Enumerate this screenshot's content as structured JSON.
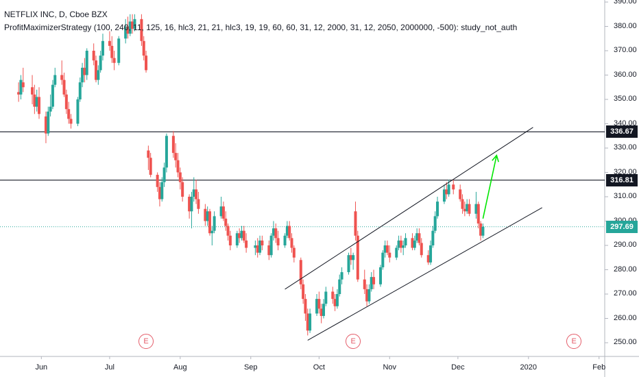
{
  "header": {
    "symbol_line": "NETFLIX INC, D, Cboe BZX",
    "study_line": "ProfitMaximizerStrategy (100, 240, 11, 125, 16, hlc3, 21, 21, hlc3, 19, 19, 60, 60, 31, 12, 2000, 31, 12, 2050, 2000000, -500): study_not_auth"
  },
  "earnings_badges": [
    {
      "label": "E",
      "date": "2019-07-17"
    },
    {
      "label": "E",
      "date": "2019-10-16"
    },
    {
      "label": "E",
      "date": "2020-01-21"
    }
  ],
  "colors": {
    "up": "#26a69a",
    "down": "#ef5350",
    "level_line": "#131722",
    "last_price": "#26a69a",
    "arrow": "#00e600",
    "badge": "#e45c69"
  },
  "chart_data": {
    "type": "candlestick",
    "title": "NETFLIX INC, D, Cboe BZX",
    "xlabel": "",
    "ylabel": "",
    "ylim": [
      246,
      392
    ],
    "x_tick_labels": [
      "Jun",
      "Jul",
      "Aug",
      "Sep",
      "Oct",
      "Nov",
      "Dec",
      "2020",
      "Feb"
    ],
    "y_tick_labels": [
      "250.00",
      "260.00",
      "270.00",
      "280.00",
      "290.00",
      "300.00",
      "310.00",
      "320.00",
      "330.00",
      "340.00",
      "350.00",
      "360.00",
      "370.00",
      "380.00",
      "390.00"
    ],
    "grid": false,
    "price_levels": [
      {
        "label": "336.67",
        "value": 336.67
      },
      {
        "label": "316.81",
        "value": 316.81
      }
    ],
    "last_price": {
      "label": "297.69",
      "value": 297.69
    },
    "trend_channel": {
      "upper": {
        "from": [
          "2019-09-16",
          272
        ],
        "to": [
          "2020-01-03",
          338.5
        ]
      },
      "lower": {
        "from": [
          "2019-09-26",
          251
        ],
        "to": [
          "2020-01-07",
          305.5
        ]
      }
    },
    "projection_arrow": {
      "from": [
        "2019-12-12",
        301
      ],
      "to": [
        "2019-12-18",
        327
      ]
    },
    "candles": [
      {
        "d": "2019-05-22",
        "o": 353.0,
        "h": 357.0,
        "l": 349.0,
        "c": 352.0
      },
      {
        "d": "2019-05-23",
        "o": 352.0,
        "h": 360.0,
        "l": 350.0,
        "c": 358.0
      },
      {
        "d": "2019-05-24",
        "o": 357.0,
        "h": 363.0,
        "l": 353.0,
        "c": 355.0
      },
      {
        "d": "2019-05-28",
        "o": 355.0,
        "h": 360.0,
        "l": 348.0,
        "c": 352.0
      },
      {
        "d": "2019-05-29",
        "o": 352.0,
        "h": 356.0,
        "l": 344.0,
        "c": 347.0
      },
      {
        "d": "2019-05-30",
        "o": 347.0,
        "h": 354.0,
        "l": 345.0,
        "c": 351.0
      },
      {
        "d": "2019-05-31",
        "o": 351.0,
        "h": 355.0,
        "l": 342.0,
        "c": 344.0
      },
      {
        "d": "2019-06-03",
        "o": 343.0,
        "h": 345.0,
        "l": 332.0,
        "c": 336.0
      },
      {
        "d": "2019-06-04",
        "o": 336.0,
        "h": 347.0,
        "l": 335.0,
        "c": 345.0
      },
      {
        "d": "2019-06-05",
        "o": 345.0,
        "h": 352.0,
        "l": 343.0,
        "c": 347.0
      },
      {
        "d": "2019-06-06",
        "o": 347.0,
        "h": 358.0,
        "l": 346.0,
        "c": 356.0
      },
      {
        "d": "2019-06-07",
        "o": 356.0,
        "h": 363.0,
        "l": 355.0,
        "c": 360.0
      },
      {
        "d": "2019-06-10",
        "o": 360.0,
        "h": 366.0,
        "l": 356.0,
        "c": 358.0
      },
      {
        "d": "2019-06-11",
        "o": 358.0,
        "h": 361.0,
        "l": 351.0,
        "c": 352.0
      },
      {
        "d": "2019-06-12",
        "o": 352.0,
        "h": 354.0,
        "l": 344.0,
        "c": 346.0
      },
      {
        "d": "2019-06-13",
        "o": 346.0,
        "h": 349.0,
        "l": 340.0,
        "c": 342.0
      },
      {
        "d": "2019-06-14",
        "o": 342.0,
        "h": 344.0,
        "l": 338.0,
        "c": 340.0
      },
      {
        "d": "2019-06-17",
        "o": 340.0,
        "h": 351.0,
        "l": 339.0,
        "c": 350.0
      },
      {
        "d": "2019-06-18",
        "o": 350.0,
        "h": 359.0,
        "l": 349.0,
        "c": 357.0
      },
      {
        "d": "2019-06-19",
        "o": 357.0,
        "h": 365.0,
        "l": 355.0,
        "c": 363.0
      },
      {
        "d": "2019-06-20",
        "o": 363.0,
        "h": 367.0,
        "l": 357.0,
        "c": 360.0
      },
      {
        "d": "2019-06-21",
        "o": 360.0,
        "h": 371.0,
        "l": 358.0,
        "c": 370.0
      },
      {
        "d": "2019-06-24",
        "o": 370.0,
        "h": 373.0,
        "l": 364.0,
        "c": 366.0
      },
      {
        "d": "2019-06-25",
        "o": 366.0,
        "h": 368.0,
        "l": 357.0,
        "c": 358.0
      },
      {
        "d": "2019-06-26",
        "o": 358.0,
        "h": 364.0,
        "l": 356.0,
        "c": 362.0
      },
      {
        "d": "2019-06-27",
        "o": 362.0,
        "h": 370.0,
        "l": 361.0,
        "c": 368.0
      },
      {
        "d": "2019-06-28",
        "o": 368.0,
        "h": 377.0,
        "l": 366.0,
        "c": 374.0
      },
      {
        "d": "2019-07-01",
        "o": 374.0,
        "h": 378.0,
        "l": 370.0,
        "c": 372.0
      },
      {
        "d": "2019-07-02",
        "o": 372.0,
        "h": 376.0,
        "l": 365.0,
        "c": 367.0
      },
      {
        "d": "2019-07-03",
        "o": 367.0,
        "h": 370.0,
        "l": 362.0,
        "c": 365.0
      },
      {
        "d": "2019-07-05",
        "o": 365.0,
        "h": 376.0,
        "l": 364.0,
        "c": 375.0
      },
      {
        "d": "2019-07-08",
        "o": 375.0,
        "h": 383.0,
        "l": 373.0,
        "c": 380.0
      },
      {
        "d": "2019-07-09",
        "o": 380.0,
        "h": 384.0,
        "l": 375.0,
        "c": 377.0
      },
      {
        "d": "2019-07-10",
        "o": 377.0,
        "h": 385.0,
        "l": 376.0,
        "c": 382.0
      },
      {
        "d": "2019-07-11",
        "o": 382.0,
        "h": 385.0,
        "l": 377.0,
        "c": 379.0
      },
      {
        "d": "2019-07-12",
        "o": 379.0,
        "h": 385.0,
        "l": 378.0,
        "c": 383.0
      },
      {
        "d": "2019-07-15",
        "o": 383.0,
        "h": 385.0,
        "l": 372.0,
        "c": 374.0
      },
      {
        "d": "2019-07-16",
        "o": 374.0,
        "h": 376.0,
        "l": 366.0,
        "c": 368.0
      },
      {
        "d": "2019-07-17",
        "o": 368.0,
        "h": 370.0,
        "l": 361.0,
        "c": 362.0
      },
      {
        "d": "2019-07-18",
        "o": 329.0,
        "h": 331.0,
        "l": 321.0,
        "c": 326.0
      },
      {
        "d": "2019-07-19",
        "o": 326.0,
        "h": 328.0,
        "l": 318.0,
        "c": 319.0
      },
      {
        "d": "2019-07-22",
        "o": 319.0,
        "h": 320.0,
        "l": 312.0,
        "c": 314.0
      },
      {
        "d": "2019-07-23",
        "o": 314.0,
        "h": 316.0,
        "l": 306.0,
        "c": 309.0
      },
      {
        "d": "2019-07-24",
        "o": 309.0,
        "h": 318.0,
        "l": 308.0,
        "c": 316.0
      },
      {
        "d": "2019-07-25",
        "o": 316.0,
        "h": 324.0,
        "l": 314.0,
        "c": 322.0
      },
      {
        "d": "2019-07-26",
        "o": 322.0,
        "h": 336.0,
        "l": 320.0,
        "c": 335.0
      },
      {
        "d": "2019-07-29",
        "o": 335.0,
        "h": 337.0,
        "l": 326.0,
        "c": 328.0
      },
      {
        "d": "2019-07-30",
        "o": 328.0,
        "h": 332.0,
        "l": 322.0,
        "c": 325.0
      },
      {
        "d": "2019-07-31",
        "o": 325.0,
        "h": 328.0,
        "l": 318.0,
        "c": 320.0
      },
      {
        "d": "2019-08-01",
        "o": 320.0,
        "h": 322.0,
        "l": 313.0,
        "c": 316.0
      },
      {
        "d": "2019-08-02",
        "o": 316.0,
        "h": 318.0,
        "l": 308.0,
        "c": 310.0
      },
      {
        "d": "2019-08-05",
        "o": 310.0,
        "h": 311.0,
        "l": 301.0,
        "c": 304.0
      },
      {
        "d": "2019-08-06",
        "o": 304.0,
        "h": 312.0,
        "l": 297.0,
        "c": 310.0
      },
      {
        "d": "2019-08-07",
        "o": 310.0,
        "h": 318.0,
        "l": 308.0,
        "c": 313.0
      },
      {
        "d": "2019-08-08",
        "o": 313.0,
        "h": 317.0,
        "l": 307.0,
        "c": 309.0
      },
      {
        "d": "2019-08-09",
        "o": 309.0,
        "h": 312.0,
        "l": 303.0,
        "c": 305.0
      },
      {
        "d": "2019-08-12",
        "o": 305.0,
        "h": 307.0,
        "l": 298.0,
        "c": 300.0
      },
      {
        "d": "2019-08-13",
        "o": 300.0,
        "h": 306.0,
        "l": 298.0,
        "c": 304.0
      },
      {
        "d": "2019-08-14",
        "o": 304.0,
        "h": 305.0,
        "l": 294.0,
        "c": 295.0
      },
      {
        "d": "2019-08-15",
        "o": 295.0,
        "h": 298.0,
        "l": 290.0,
        "c": 296.0
      },
      {
        "d": "2019-08-16",
        "o": 296.0,
        "h": 304.0,
        "l": 295.0,
        "c": 302.0
      },
      {
        "d": "2019-08-19",
        "o": 302.0,
        "h": 310.0,
        "l": 301.0,
        "c": 306.0
      },
      {
        "d": "2019-08-20",
        "o": 306.0,
        "h": 308.0,
        "l": 300.0,
        "c": 301.0
      },
      {
        "d": "2019-08-21",
        "o": 301.0,
        "h": 304.0,
        "l": 296.0,
        "c": 298.0
      },
      {
        "d": "2019-08-22",
        "o": 298.0,
        "h": 299.0,
        "l": 292.0,
        "c": 294.0
      },
      {
        "d": "2019-08-23",
        "o": 294.0,
        "h": 296.0,
        "l": 288.0,
        "c": 290.0
      },
      {
        "d": "2019-08-26",
        "o": 290.0,
        "h": 296.0,
        "l": 289.0,
        "c": 295.0
      },
      {
        "d": "2019-08-27",
        "o": 295.0,
        "h": 297.0,
        "l": 291.0,
        "c": 293.0
      },
      {
        "d": "2019-08-28",
        "o": 293.0,
        "h": 298.0,
        "l": 292.0,
        "c": 296.0
      },
      {
        "d": "2019-08-29",
        "o": 296.0,
        "h": 298.0,
        "l": 291.0,
        "c": 292.0
      },
      {
        "d": "2019-08-30",
        "o": 292.0,
        "h": 295.0,
        "l": 287.0,
        "c": 289.0
      },
      {
        "d": "2019-09-03",
        "o": 289.0,
        "h": 292.0,
        "l": 286.0,
        "c": 290.0
      },
      {
        "d": "2019-09-04",
        "o": 290.0,
        "h": 293.0,
        "l": 285.0,
        "c": 287.0
      },
      {
        "d": "2019-09-05",
        "o": 287.0,
        "h": 294.0,
        "l": 286.0,
        "c": 292.0
      },
      {
        "d": "2019-09-06",
        "o": 292.0,
        "h": 294.0,
        "l": 288.0,
        "c": 290.0
      },
      {
        "d": "2019-09-09",
        "o": 290.0,
        "h": 292.0,
        "l": 284.0,
        "c": 286.0
      },
      {
        "d": "2019-09-10",
        "o": 286.0,
        "h": 295.0,
        "l": 285.0,
        "c": 294.0
      },
      {
        "d": "2019-09-11",
        "o": 294.0,
        "h": 300.0,
        "l": 292.0,
        "c": 297.0
      },
      {
        "d": "2019-09-12",
        "o": 297.0,
        "h": 299.0,
        "l": 291.0,
        "c": 293.0
      },
      {
        "d": "2019-09-13",
        "o": 293.0,
        "h": 296.0,
        "l": 288.0,
        "c": 290.0
      },
      {
        "d": "2019-09-16",
        "o": 290.0,
        "h": 295.0,
        "l": 289.0,
        "c": 294.0
      },
      {
        "d": "2019-09-17",
        "o": 294.0,
        "h": 300.0,
        "l": 293.0,
        "c": 298.0
      },
      {
        "d": "2019-09-18",
        "o": 298.0,
        "h": 300.0,
        "l": 292.0,
        "c": 293.0
      },
      {
        "d": "2019-09-19",
        "o": 293.0,
        "h": 295.0,
        "l": 287.0,
        "c": 289.0
      },
      {
        "d": "2019-09-20",
        "o": 289.0,
        "h": 290.0,
        "l": 283.0,
        "c": 285.0
      },
      {
        "d": "2019-09-23",
        "o": 284.0,
        "h": 285.0,
        "l": 272.0,
        "c": 274.0
      },
      {
        "d": "2019-09-24",
        "o": 274.0,
        "h": 276.0,
        "l": 266.0,
        "c": 268.0
      },
      {
        "d": "2019-09-25",
        "o": 268.0,
        "h": 270.0,
        "l": 259.0,
        "c": 262.0
      },
      {
        "d": "2019-09-26",
        "o": 262.0,
        "h": 264.0,
        "l": 253.0,
        "c": 255.0
      },
      {
        "d": "2019-09-27",
        "o": 255.0,
        "h": 264.0,
        "l": 254.0,
        "c": 262.0
      },
      {
        "d": "2019-09-30",
        "o": 262.0,
        "h": 270.0,
        "l": 261.0,
        "c": 268.0
      },
      {
        "d": "2019-10-01",
        "o": 268.0,
        "h": 271.0,
        "l": 262.0,
        "c": 264.0
      },
      {
        "d": "2019-10-02",
        "o": 264.0,
        "h": 266.0,
        "l": 258.0,
        "c": 261.0
      },
      {
        "d": "2019-10-03",
        "o": 261.0,
        "h": 268.0,
        "l": 260.0,
        "c": 266.0
      },
      {
        "d": "2019-10-04",
        "o": 266.0,
        "h": 273.0,
        "l": 265.0,
        "c": 271.0
      },
      {
        "d": "2019-10-07",
        "o": 271.0,
        "h": 273.0,
        "l": 266.0,
        "c": 268.0
      },
      {
        "d": "2019-10-08",
        "o": 268.0,
        "h": 270.0,
        "l": 263.0,
        "c": 265.0
      },
      {
        "d": "2019-10-09",
        "o": 265.0,
        "h": 272.0,
        "l": 264.0,
        "c": 270.0
      },
      {
        "d": "2019-10-10",
        "o": 270.0,
        "h": 278.0,
        "l": 269.0,
        "c": 276.0
      },
      {
        "d": "2019-10-11",
        "o": 276.0,
        "h": 281.0,
        "l": 274.0,
        "c": 279.0
      },
      {
        "d": "2019-10-14",
        "o": 279.0,
        "h": 287.0,
        "l": 278.0,
        "c": 286.0
      },
      {
        "d": "2019-10-15",
        "o": 286.0,
        "h": 289.0,
        "l": 282.0,
        "c": 284.0
      },
      {
        "d": "2019-10-16",
        "o": 284.0,
        "h": 287.0,
        "l": 280.0,
        "c": 286.0
      },
      {
        "d": "2019-10-17",
        "o": 304.0,
        "h": 308.0,
        "l": 292.0,
        "c": 294.0
      },
      {
        "d": "2019-10-18",
        "o": 294.0,
        "h": 296.0,
        "l": 275.0,
        "c": 276.0
      },
      {
        "d": "2019-10-21",
        "o": 276.0,
        "h": 280.0,
        "l": 270.0,
        "c": 272.0
      },
      {
        "d": "2019-10-22",
        "o": 272.0,
        "h": 274.0,
        "l": 265.0,
        "c": 267.0
      },
      {
        "d": "2019-10-23",
        "o": 267.0,
        "h": 274.0,
        "l": 266.0,
        "c": 272.0
      },
      {
        "d": "2019-10-24",
        "o": 272.0,
        "h": 279.0,
        "l": 271.0,
        "c": 277.0
      },
      {
        "d": "2019-10-25",
        "o": 277.0,
        "h": 280.0,
        "l": 272.0,
        "c": 274.0
      },
      {
        "d": "2019-10-28",
        "o": 274.0,
        "h": 282.0,
        "l": 273.0,
        "c": 281.0
      },
      {
        "d": "2019-10-29",
        "o": 281.0,
        "h": 288.0,
        "l": 280.0,
        "c": 287.0
      },
      {
        "d": "2019-10-30",
        "o": 287.0,
        "h": 292.0,
        "l": 285.0,
        "c": 290.0
      },
      {
        "d": "2019-10-31",
        "o": 290.0,
        "h": 292.0,
        "l": 286.0,
        "c": 287.0
      },
      {
        "d": "2019-11-01",
        "o": 287.0,
        "h": 290.0,
        "l": 283.0,
        "c": 285.0
      },
      {
        "d": "2019-11-04",
        "o": 285.0,
        "h": 290.0,
        "l": 284.0,
        "c": 289.0
      },
      {
        "d": "2019-11-05",
        "o": 289.0,
        "h": 294.0,
        "l": 288.0,
        "c": 292.0
      },
      {
        "d": "2019-11-06",
        "o": 292.0,
        "h": 294.0,
        "l": 287.0,
        "c": 289.0
      },
      {
        "d": "2019-11-07",
        "o": 289.0,
        "h": 292.0,
        "l": 286.0,
        "c": 290.0
      },
      {
        "d": "2019-11-08",
        "o": 290.0,
        "h": 295.0,
        "l": 289.0,
        "c": 293.0
      },
      {
        "d": "2019-11-11",
        "o": 293.0,
        "h": 295.0,
        "l": 288.0,
        "c": 289.0
      },
      {
        "d": "2019-11-12",
        "o": 289.0,
        "h": 294.0,
        "l": 288.0,
        "c": 292.0
      },
      {
        "d": "2019-11-13",
        "o": 292.0,
        "h": 297.0,
        "l": 291.0,
        "c": 295.0
      },
      {
        "d": "2019-11-14",
        "o": 295.0,
        "h": 297.0,
        "l": 290.0,
        "c": 291.0
      },
      {
        "d": "2019-11-15",
        "o": 291.0,
        "h": 293.0,
        "l": 285.0,
        "c": 286.0
      },
      {
        "d": "2019-11-18",
        "o": 286.0,
        "h": 288.0,
        "l": 282.0,
        "c": 283.0
      },
      {
        "d": "2019-11-19",
        "o": 283.0,
        "h": 292.0,
        "l": 282.0,
        "c": 290.0
      },
      {
        "d": "2019-11-20",
        "o": 290.0,
        "h": 298.0,
        "l": 289.0,
        "c": 296.0
      },
      {
        "d": "2019-11-21",
        "o": 296.0,
        "h": 304.0,
        "l": 295.0,
        "c": 302.0
      },
      {
        "d": "2019-11-22",
        "o": 302.0,
        "h": 310.0,
        "l": 301.0,
        "c": 308.0
      },
      {
        "d": "2019-11-25",
        "o": 308.0,
        "h": 315.0,
        "l": 307.0,
        "c": 313.0
      },
      {
        "d": "2019-11-26",
        "o": 313.0,
        "h": 316.0,
        "l": 309.0,
        "c": 311.0
      },
      {
        "d": "2019-11-27",
        "o": 311.0,
        "h": 317.0,
        "l": 310.0,
        "c": 315.0
      },
      {
        "d": "2019-11-29",
        "o": 315.0,
        "h": 317.0,
        "l": 311.0,
        "c": 313.0
      },
      {
        "d": "2019-12-02",
        "o": 313.0,
        "h": 315.0,
        "l": 308.0,
        "c": 309.0
      },
      {
        "d": "2019-12-03",
        "o": 309.0,
        "h": 311.0,
        "l": 303.0,
        "c": 305.0
      },
      {
        "d": "2019-12-04",
        "o": 305.0,
        "h": 308.0,
        "l": 302.0,
        "c": 304.0
      },
      {
        "d": "2019-12-05",
        "o": 304.0,
        "h": 309.0,
        "l": 303.0,
        "c": 307.0
      },
      {
        "d": "2019-12-06",
        "o": 307.0,
        "h": 309.0,
        "l": 302.0,
        "c": 303.0
      },
      {
        "d": "2019-12-09",
        "o": 303.0,
        "h": 312.0,
        "l": 301.0,
        "c": 307.0
      },
      {
        "d": "2019-12-10",
        "o": 307.0,
        "h": 308.0,
        "l": 297.0,
        "c": 299.0
      },
      {
        "d": "2019-12-11",
        "o": 299.0,
        "h": 300.0,
        "l": 292.0,
        "c": 294.0
      },
      {
        "d": "2019-12-12",
        "o": 294.0,
        "h": 299.0,
        "l": 293.0,
        "c": 297.69
      }
    ]
  }
}
